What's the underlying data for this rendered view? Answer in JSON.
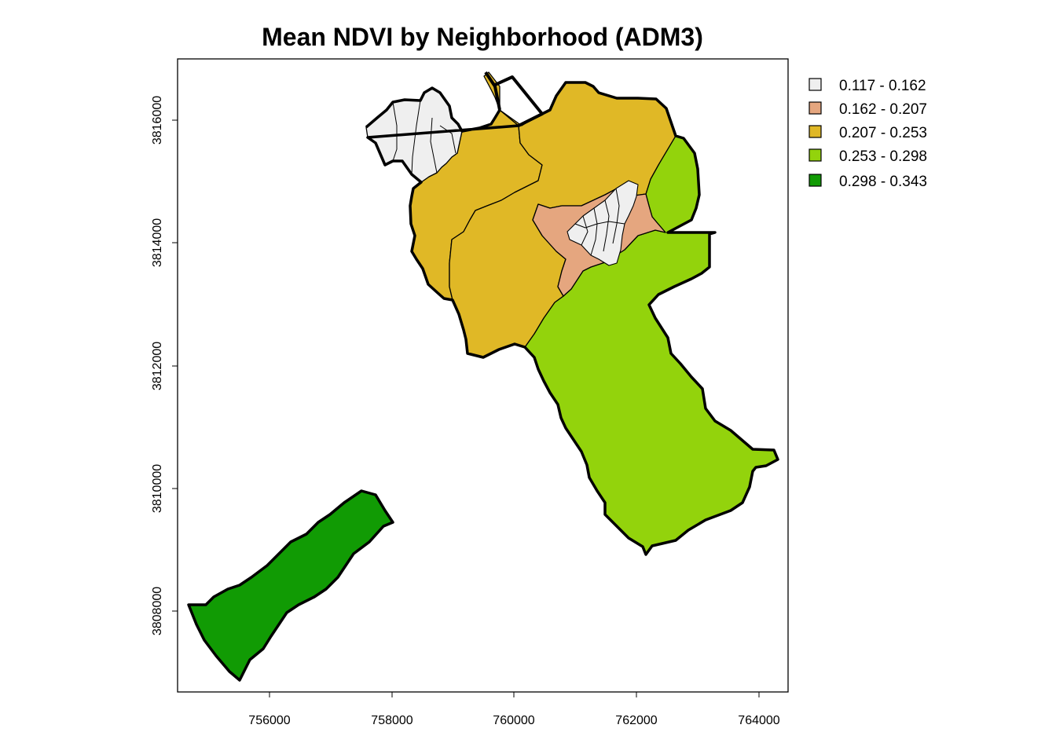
{
  "title": "Mean NDVI by Neighborhood (ADM3)",
  "x_axis": {
    "ticks": [
      "756000",
      "758000",
      "760000",
      "762000",
      "764000"
    ],
    "range": [
      754700,
      764500
    ]
  },
  "y_axis": {
    "ticks": [
      "3808000",
      "3810000",
      "3812000",
      "3814000",
      "3816000"
    ],
    "range": [
      3806800,
      3817000
    ]
  },
  "legend": {
    "placement": "top-right",
    "entries": [
      {
        "label": "0.117 - 0.162",
        "color": "#efefef"
      },
      {
        "label": "0.162 - 0.207",
        "color": "#e5a67f"
      },
      {
        "label": "0.207 - 0.253",
        "color": "#e0b826"
      },
      {
        "label": "0.253 - 0.298",
        "color": "#93d30c"
      },
      {
        "label": "0.298 - 0.343",
        "color": "#119b04"
      }
    ]
  },
  "regions": [
    {
      "name": "north-west coastal neighborhoods",
      "ndvi_class": "0.117 - 0.162",
      "color": "#efefef"
    },
    {
      "name": "central neighborhoods",
      "ndvi_class": "0.117 - 0.162",
      "color": "#efefef"
    },
    {
      "name": "ring of inner neighborhoods",
      "ndvi_class": "0.162 - 0.207",
      "color": "#e5a67f"
    },
    {
      "name": "north-west zones",
      "ndvi_class": "0.207 - 0.253",
      "color": "#e0b826"
    },
    {
      "name": "eastern and southern zone",
      "ndvi_class": "0.253 - 0.298",
      "color": "#93d30c"
    },
    {
      "name": "south-western coastal strip",
      "ndvi_class": "0.298 - 0.343",
      "color": "#119b04"
    }
  ]
}
